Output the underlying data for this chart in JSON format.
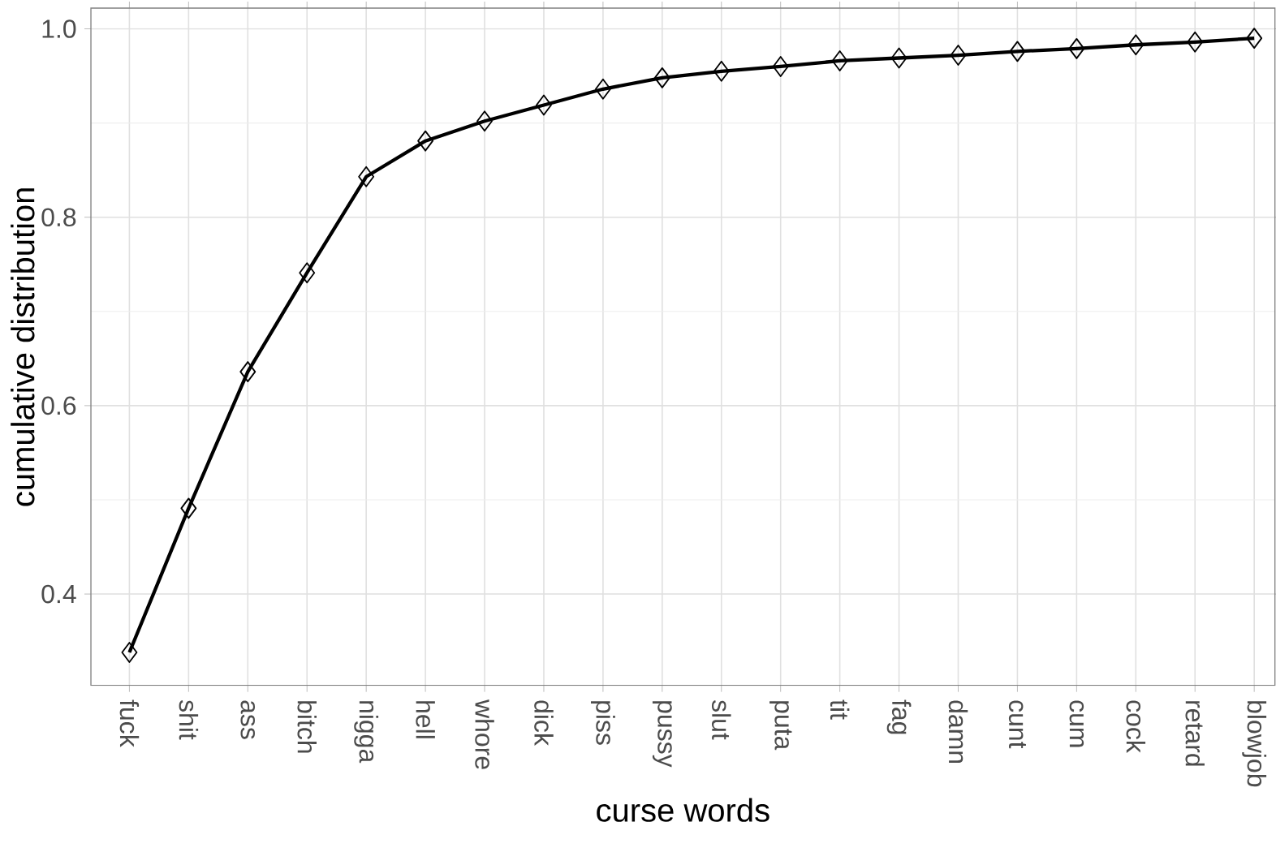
{
  "chart_data": {
    "type": "line",
    "xlabel": "curse words",
    "ylabel": "cumulative distribution",
    "categories": [
      "fuck",
      "shit",
      "ass",
      "bitch",
      "nigga",
      "hell",
      "whore",
      "dick",
      "piss",
      "pussy",
      "slut",
      "puta",
      "tit",
      "fag",
      "damn",
      "cunt",
      "cum",
      "cock",
      "retard",
      "blowjob"
    ],
    "values": [
      0.338,
      0.491,
      0.636,
      0.741,
      0.843,
      0.881,
      0.902,
      0.919,
      0.936,
      0.948,
      0.955,
      0.96,
      0.966,
      0.969,
      0.972,
      0.976,
      0.979,
      0.983,
      0.986,
      0.99
    ],
    "color": "#000000",
    "marker": "diamond",
    "line_style": "solid",
    "grid": true,
    "ylim": [
      0.303,
      1.022
    ],
    "yticks": [
      0.4,
      0.6,
      0.8,
      {
        "value": 1.0,
        "label": "1.0"
      }
    ]
  }
}
